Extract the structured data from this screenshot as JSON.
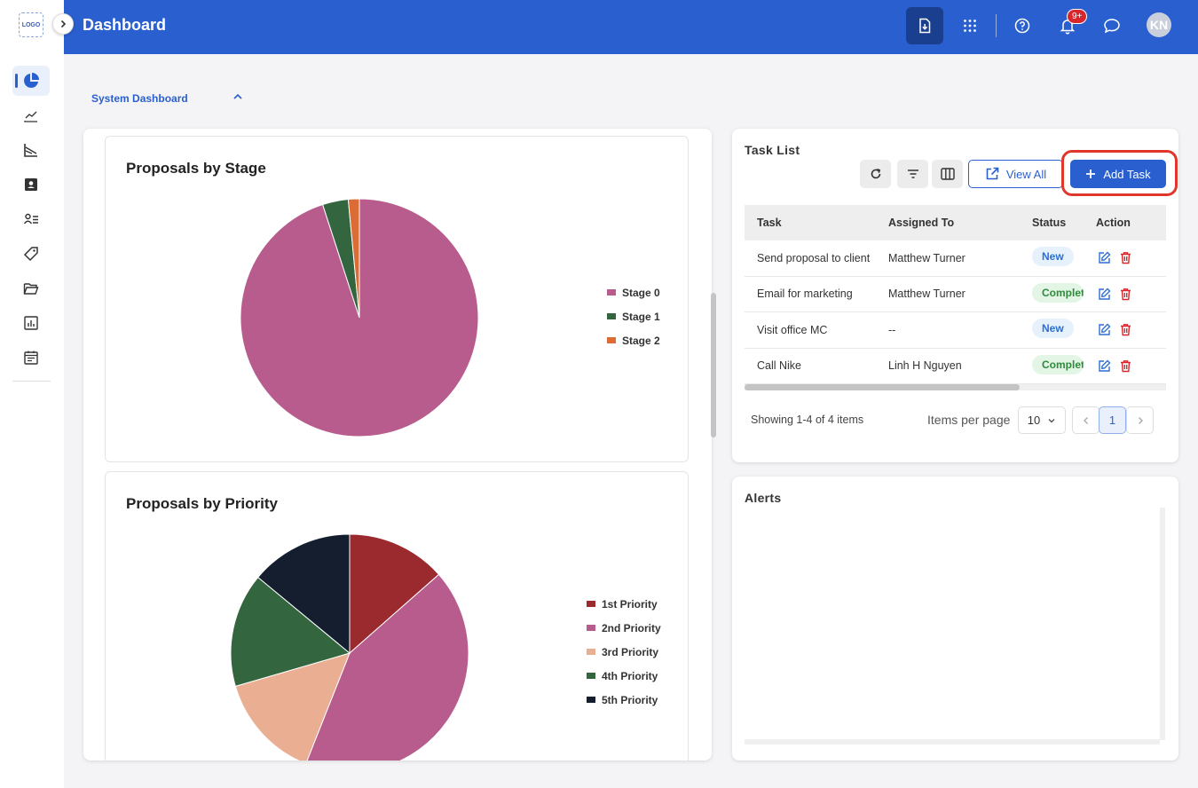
{
  "sidebar": {
    "logo_text": "LOGO",
    "items": [
      {
        "icon": "pie-chart-icon",
        "active": true
      },
      {
        "icon": "trend-line-icon"
      },
      {
        "icon": "area-chart-icon"
      },
      {
        "icon": "contact-card-icon"
      },
      {
        "icon": "user-list-icon"
      },
      {
        "icon": "tag-icon"
      },
      {
        "icon": "folder-open-icon"
      },
      {
        "icon": "bar-report-icon"
      },
      {
        "icon": "calendar-icon"
      }
    ]
  },
  "header": {
    "title": "Dashboard",
    "notification_badge": "9+",
    "avatar_initials": "KN",
    "accent_color": "#2a5fcf"
  },
  "section": {
    "title": "System Dashboard"
  },
  "charts": {
    "stage_title": "Proposals by Stage",
    "priority_title": "Proposals by Priority"
  },
  "chart_data": [
    {
      "type": "pie",
      "title": "Proposals by Stage",
      "categories": [
        "Stage 0",
        "Stage 1",
        "Stage 2"
      ],
      "values": [
        95,
        3.5,
        1.5
      ],
      "colors": [
        "#b85c8e",
        "#33663f",
        "#dc6b34"
      ],
      "legend_position": "right"
    },
    {
      "type": "pie",
      "title": "Proposals by Priority",
      "categories": [
        "1st Priority",
        "2nd Priority",
        "3rd Priority",
        "4th Priority",
        "5th Priority"
      ],
      "values": [
        13.5,
        42.5,
        14.5,
        15.5,
        14
      ],
      "colors": [
        "#9b2a2e",
        "#b85c8e",
        "#eaaf92",
        "#33663f",
        "#141e2f"
      ],
      "legend_position": "right"
    }
  ],
  "task_list": {
    "title": "Task List",
    "view_all_label": "View All",
    "add_task_label": "Add Task",
    "columns": [
      "Task",
      "Assigned To",
      "Status",
      "Action"
    ],
    "rows": [
      {
        "task": "Send proposal to client",
        "assigned": "Matthew Turner",
        "status": "New"
      },
      {
        "task": "Email for marketing",
        "assigned": "Matthew Turner",
        "status": "Complet"
      },
      {
        "task": "Visit office MC",
        "assigned": "--",
        "status": "New"
      },
      {
        "task": "Call Nike",
        "assigned": "Linh H Nguyen",
        "status": "Complet"
      }
    ],
    "showing_text": "Showing 1-4 of 4 items",
    "items_per_page_label": "Items per page",
    "items_per_page_value": "10",
    "current_page": "1"
  },
  "alerts": {
    "title": "Alerts"
  }
}
